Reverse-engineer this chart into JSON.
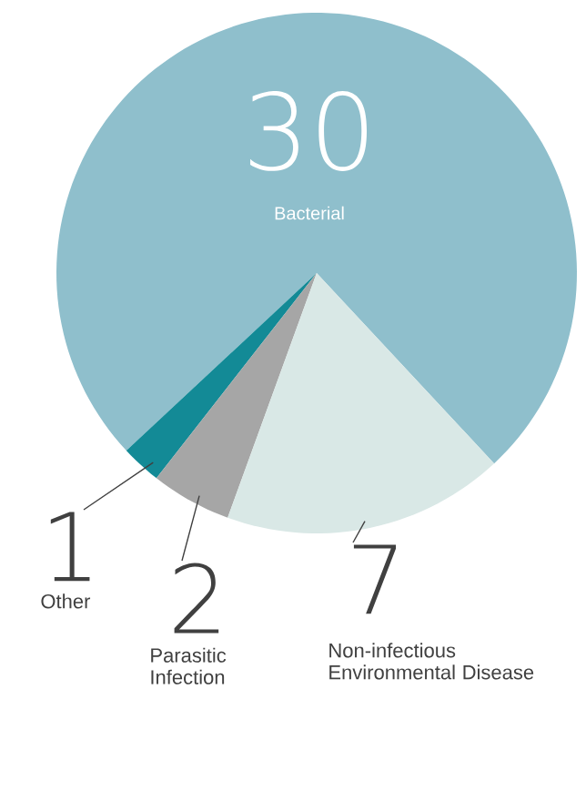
{
  "chart_data": {
    "type": "pie",
    "categories": [
      "Bacterial",
      "Other",
      "Parasitic Infection",
      "Non-infectious Environmental Disease"
    ],
    "values": [
      30,
      1,
      2,
      7
    ],
    "colors": [
      "#8fbfcc",
      "#138a96",
      "#a6a6a6",
      "#d9e8e6"
    ],
    "data_labels": true
  }
}
